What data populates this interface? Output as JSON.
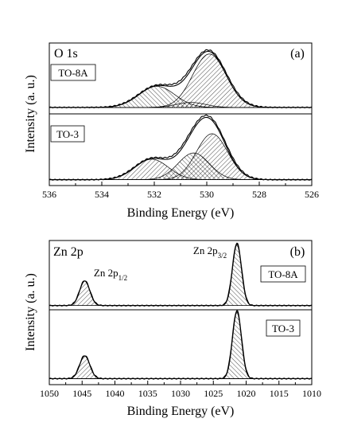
{
  "chart_data": [
    {
      "type": "line",
      "panel_tag": "(a)",
      "element_label": "O 1s",
      "xlabel": "Binding Energy (eV)",
      "ylabel": "Intensity (a. u.)",
      "xlim": [
        536,
        526
      ],
      "x_ticks": [
        536,
        534,
        532,
        530,
        528,
        526
      ],
      "x_tick_labels": [
        "536",
        "534",
        "532",
        "530",
        "528",
        "526"
      ],
      "y_ticks_shown": false,
      "subpanels": [
        {
          "sample": "TO-8A",
          "baseline": 0.04,
          "peak_height": 1.0,
          "components": [
            {
              "center": 529.9,
              "fwhm": 1.5,
              "amplitude": 0.86
            },
            {
              "center": 531.9,
              "fwhm": 1.6,
              "amplitude": 0.34
            },
            {
              "center": 530.6,
              "fwhm": 1.3,
              "amplitude": 0.08
            }
          ]
        },
        {
          "sample": "TO-3",
          "baseline": 0.03,
          "peak_height": 1.0,
          "components": [
            {
              "center": 529.8,
              "fwhm": 1.4,
              "amplitude": 0.74
            },
            {
              "center": 530.5,
              "fwhm": 1.4,
              "amplitude": 0.43
            },
            {
              "center": 532.1,
              "fwhm": 1.5,
              "amplitude": 0.33
            }
          ]
        }
      ]
    },
    {
      "type": "line",
      "panel_tag": "(b)",
      "element_label": "Zn 2p",
      "peak_labels": [
        {
          "main": "Zn 2p",
          "sub": "1/2",
          "x": 1044.6
        },
        {
          "main": "Zn 2p",
          "sub": "3/2",
          "x": 1021.5
        }
      ],
      "xlabel": "Binding Energy (eV)",
      "ylabel": "Intensity (a. u.)",
      "xlim": [
        1050,
        1010
      ],
      "x_ticks": [
        1050,
        1045,
        1040,
        1035,
        1030,
        1025,
        1020,
        1015,
        1010
      ],
      "x_tick_labels": [
        "1050",
        "1045",
        "1040",
        "1035",
        "1030",
        "1025",
        "1020",
        "1015",
        "1010"
      ],
      "y_ticks_shown": false,
      "subpanels": [
        {
          "sample": "TO-8A",
          "baseline": 0.03,
          "peak_height": 1.0,
          "components": [
            {
              "center": 1044.6,
              "fwhm": 1.8,
              "amplitude": 0.4
            },
            {
              "center": 1021.4,
              "fwhm": 1.6,
              "amplitude": 1.0
            }
          ]
        },
        {
          "sample": "TO-3",
          "baseline": 0.03,
          "peak_height": 1.0,
          "components": [
            {
              "center": 1044.6,
              "fwhm": 1.8,
              "amplitude": 0.34
            },
            {
              "center": 1021.4,
              "fwhm": 1.6,
              "amplitude": 1.0
            }
          ]
        }
      ]
    }
  ]
}
